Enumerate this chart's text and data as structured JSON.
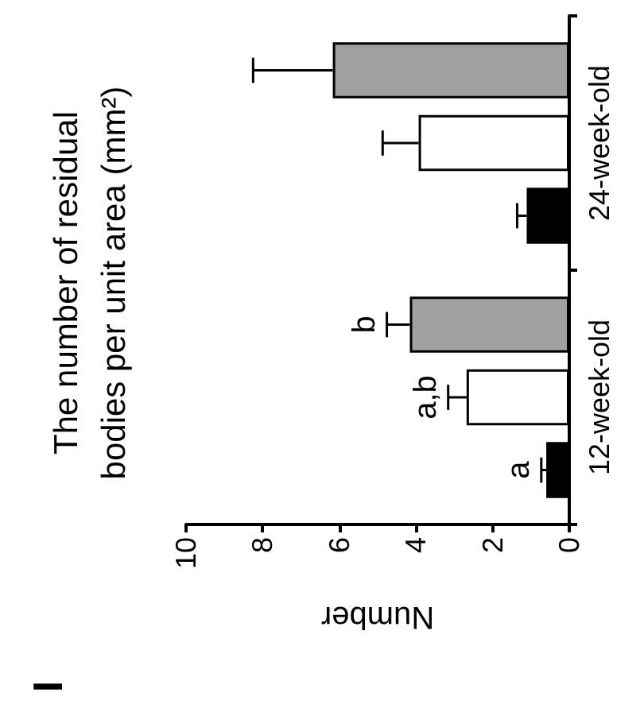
{
  "chart_data": {
    "type": "bar",
    "orientation": "horizontal",
    "title": "The number of residual\nbodies per unit area (mm²)",
    "xlabel": "Number",
    "categories": [
      "24-week-old",
      "12-week-old"
    ],
    "series": [
      {
        "color": "#a0a0a0",
        "values": [
          6.17,
          4.16
        ],
        "errors": [
          [
            6.17,
            8.25
          ],
          [
            4.16,
            4.76
          ]
        ],
        "value_labels": [
          null,
          "b"
        ]
      },
      {
        "color": "#ffffff",
        "values": [
          3.93,
          2.68
        ],
        "errors": [
          [
            3.93,
            4.87
          ],
          [
            2.68,
            3.16
          ]
        ],
        "value_labels": [
          null,
          "a,b"
        ]
      },
      {
        "color": "#000000",
        "values": [
          1.11,
          0.6
        ],
        "errors": [
          [
            1.11,
            1.36
          ],
          [
            0.6,
            0.73
          ]
        ],
        "value_labels": [
          null,
          "a"
        ]
      }
    ],
    "xlim": [
      10,
      0
    ],
    "xticks": [
      10,
      8,
      6,
      4,
      2,
      0
    ],
    "grid": false,
    "annotations": [
      "I"
    ]
  }
}
